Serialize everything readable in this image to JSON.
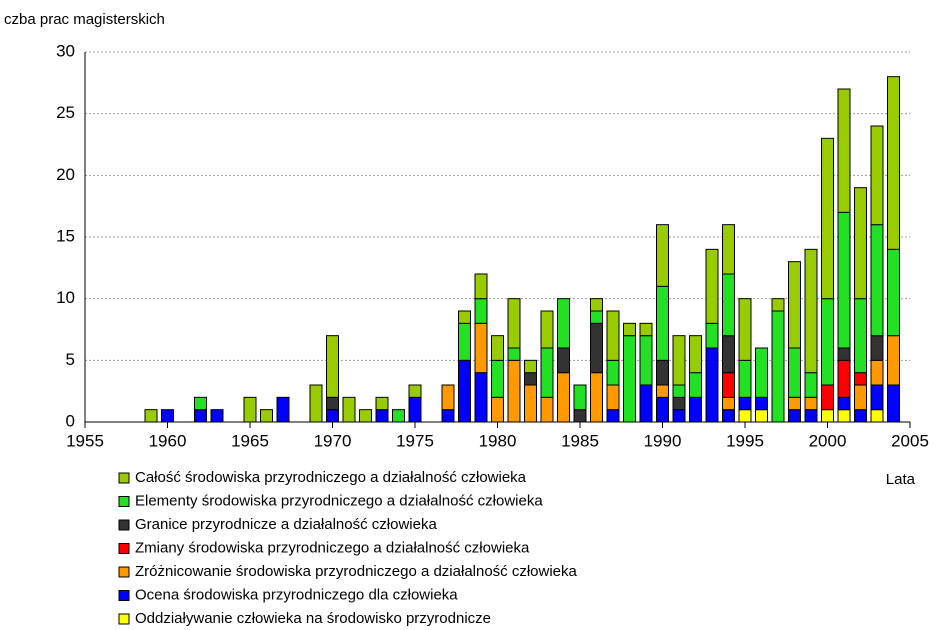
{
  "chart_data": {
    "type": "stacked-bar",
    "y_label": "czba prac magisterskich",
    "x_label": "Lata",
    "x": [
      1959,
      1960,
      1961,
      1962,
      1963,
      1964,
      1965,
      1966,
      1967,
      1968,
      1969,
      1970,
      1971,
      1972,
      1973,
      1974,
      1975,
      1976,
      1977,
      1978,
      1979,
      1980,
      1981,
      1982,
      1983,
      1984,
      1985,
      1986,
      1987,
      1988,
      1989,
      1990,
      1991,
      1992,
      1993,
      1994,
      1995,
      1996,
      1997,
      1998,
      1999,
      2000,
      2001,
      2002,
      2003,
      2004
    ],
    "xlim": [
      1955,
      2005
    ],
    "xticks": [
      1955,
      1960,
      1965,
      1970,
      1975,
      1980,
      1985,
      1990,
      1995,
      2000,
      2005
    ],
    "ylim": [
      0,
      30
    ],
    "yticks": [
      0,
      5,
      10,
      15,
      20,
      25,
      30
    ],
    "grid": true,
    "series": [
      {
        "name": "Oddziaływanie człowieka na środowisko przyrodnicze",
        "color": "#ffff00",
        "values": [
          0,
          0,
          0,
          0,
          0,
          0,
          0,
          0,
          0,
          0,
          0,
          0,
          0,
          0,
          0,
          0,
          0,
          0,
          0,
          0,
          0,
          0,
          0,
          0,
          0,
          0,
          0,
          0,
          0,
          0,
          0,
          0,
          0,
          0,
          0,
          0,
          1,
          1,
          0,
          0,
          0,
          1,
          1,
          0,
          1,
          0
        ]
      },
      {
        "name": "Ocena środowiska przyrodniczego dla człowieka",
        "color": "#0000ff",
        "values": [
          0,
          1,
          0,
          1,
          1,
          0,
          0,
          0,
          2,
          0,
          0,
          1,
          0,
          0,
          1,
          0,
          2,
          0,
          1,
          5,
          4,
          0,
          0,
          0,
          0,
          0,
          0,
          0,
          1,
          0,
          3,
          2,
          1,
          2,
          6,
          1,
          1,
          1,
          0,
          1,
          1,
          0,
          1,
          1,
          2,
          3
        ]
      },
      {
        "name": "Zróżnicowanie środowiska przyrodniczego a działalność człowieka",
        "color": "#ff9900",
        "values": [
          0,
          0,
          0,
          0,
          0,
          0,
          0,
          0,
          0,
          0,
          0,
          0,
          0,
          0,
          0,
          0,
          0,
          0,
          2,
          0,
          4,
          2,
          5,
          3,
          2,
          4,
          0,
          4,
          2,
          0,
          0,
          1,
          0,
          0,
          0,
          1,
          0,
          0,
          0,
          1,
          1,
          0,
          0,
          2,
          2,
          4
        ]
      },
      {
        "name": "Zmiany środowiska przyrodniczego a działalność człowieka",
        "color": "#ff0000",
        "values": [
          0,
          0,
          0,
          0,
          0,
          0,
          0,
          0,
          0,
          0,
          0,
          0,
          0,
          0,
          0,
          0,
          0,
          0,
          0,
          0,
          0,
          0,
          0,
          0,
          0,
          0,
          0,
          0,
          0,
          0,
          0,
          0,
          0,
          0,
          0,
          2,
          0,
          0,
          0,
          0,
          0,
          2,
          3,
          1,
          0,
          0
        ]
      },
      {
        "name": "Granice przyrodnicze a działalność człowieka",
        "color": "#333333",
        "values": [
          0,
          0,
          0,
          0,
          0,
          0,
          0,
          0,
          0,
          0,
          0,
          1,
          0,
          0,
          0,
          0,
          0,
          0,
          0,
          0,
          0,
          0,
          0,
          1,
          0,
          2,
          1,
          4,
          0,
          0,
          0,
          2,
          1,
          0,
          0,
          3,
          0,
          0,
          0,
          0,
          0,
          0,
          1,
          0,
          2,
          0
        ]
      },
      {
        "name": "Elementy środowiska przyrodniczego a działalność człowieka",
        "color": "#22e022",
        "values": [
          0,
          0,
          0,
          1,
          0,
          0,
          0,
          0,
          0,
          0,
          0,
          0,
          0,
          0,
          0,
          1,
          0,
          0,
          0,
          3,
          2,
          3,
          1,
          0,
          4,
          4,
          2,
          1,
          2,
          7,
          4,
          6,
          1,
          2,
          2,
          5,
          3,
          4,
          9,
          4,
          2,
          7,
          11,
          6,
          9,
          7
        ]
      },
      {
        "name": "Całość środowiska przyrodniczego a działalność człowieka",
        "color": "#99cc00",
        "values": [
          1,
          0,
          0,
          0,
          0,
          0,
          2,
          1,
          0,
          0,
          3,
          5,
          2,
          1,
          1,
          0,
          1,
          0,
          0,
          1,
          2,
          2,
          4,
          1,
          3,
          0,
          0,
          1,
          4,
          1,
          1,
          5,
          4,
          3,
          6,
          4,
          5,
          0,
          1,
          7,
          10,
          13,
          10,
          9,
          8,
          14
        ]
      }
    ]
  }
}
